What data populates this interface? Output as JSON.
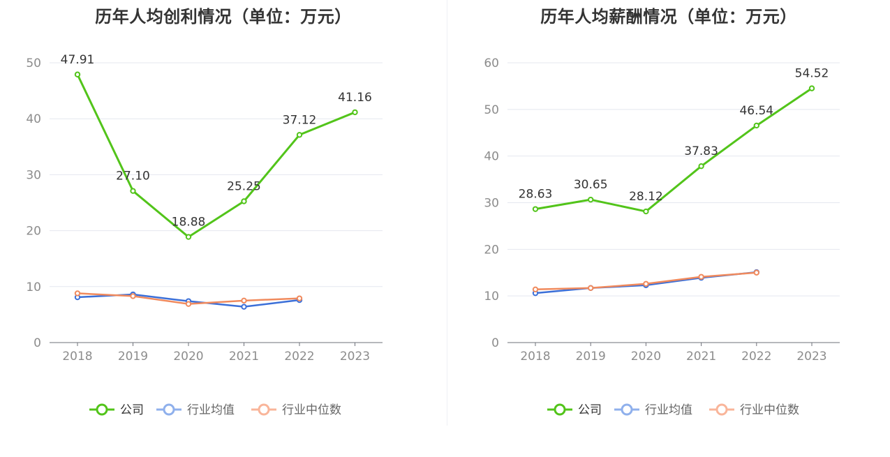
{
  "chart_data": [
    {
      "type": "line",
      "title": "历年人均创利情况（单位：万元）",
      "categories": [
        "2018",
        "2019",
        "2020",
        "2021",
        "2022",
        "2023"
      ],
      "ylim": [
        0,
        50
      ],
      "yticks": [
        0,
        10,
        20,
        30,
        40,
        50
      ],
      "grid": true,
      "legend_position": "bottom",
      "series": [
        {
          "name": "公司",
          "color": "#52c41a",
          "values": [
            47.91,
            27.1,
            18.88,
            25.25,
            37.12,
            41.16
          ],
          "labels": [
            "47.91",
            "27.10",
            "18.88",
            "25.25",
            "37.12",
            "41.16"
          ]
        },
        {
          "name": "行业均值",
          "color": "#3b6fd8",
          "values": [
            8.1,
            8.6,
            7.4,
            6.4,
            7.6,
            null
          ]
        },
        {
          "name": "行业中位数",
          "color": "#f08a5d",
          "values": [
            8.8,
            8.3,
            6.9,
            7.5,
            7.9,
            null
          ]
        }
      ]
    },
    {
      "type": "line",
      "title": "历年人均薪酬情况（单位：万元）",
      "categories": [
        "2018",
        "2019",
        "2020",
        "2021",
        "2022",
        "2023"
      ],
      "ylim": [
        0,
        60
      ],
      "yticks": [
        0,
        10,
        20,
        30,
        40,
        50,
        60
      ],
      "grid": true,
      "legend_position": "bottom",
      "series": [
        {
          "name": "公司",
          "color": "#52c41a",
          "values": [
            28.63,
            30.65,
            28.12,
            37.83,
            46.54,
            54.52
          ],
          "labels": [
            "28.63",
            "30.65",
            "28.12",
            "37.83",
            "46.54",
            "54.52"
          ]
        },
        {
          "name": "行业均值",
          "color": "#3b6fd8",
          "values": [
            10.6,
            11.7,
            12.3,
            13.9,
            15.1,
            null
          ]
        },
        {
          "name": "行业中位数",
          "color": "#f08a5d",
          "values": [
            11.4,
            11.7,
            12.6,
            14.1,
            15.0,
            null
          ]
        }
      ]
    }
  ],
  "legend_colors": {
    "公司": "#52c41a",
    "行业均值": "#8fb0ec",
    "行业中位数": "#f9b59a"
  }
}
